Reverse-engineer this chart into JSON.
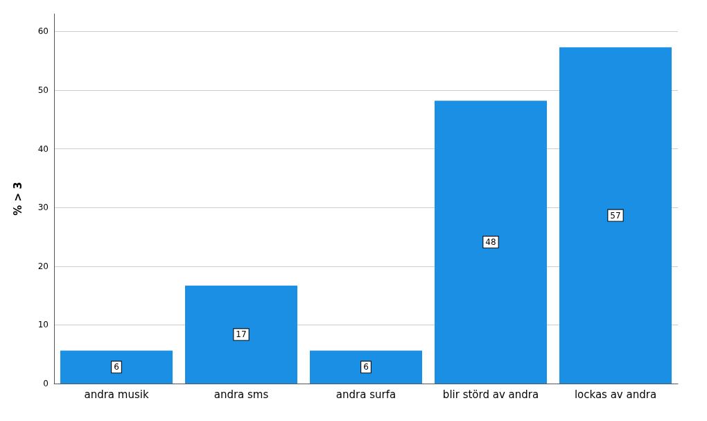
{
  "chart_data": {
    "type": "bar",
    "ylabel": "% > 3",
    "categories": [
      "andra musik",
      "andra sms",
      "andra surfa",
      "blir störd av andra",
      "lockas av andra"
    ],
    "values": [
      5.6,
      16.7,
      5.6,
      48.2,
      57.3
    ],
    "value_labels": [
      "6",
      "17",
      "6",
      "48",
      "57"
    ],
    "color": "#1a8fe3",
    "ylim": [
      0,
      63
    ],
    "yticks": [
      0,
      10,
      20,
      30,
      40,
      50,
      60
    ],
    "grid": "y"
  }
}
